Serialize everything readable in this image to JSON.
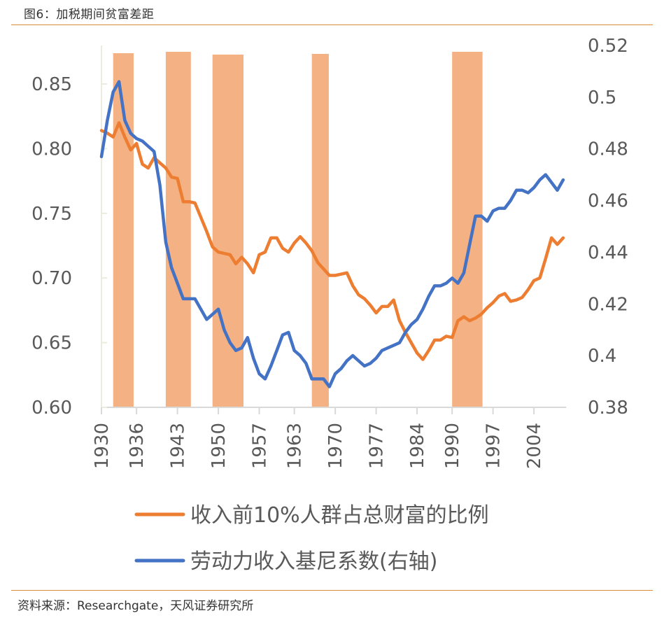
{
  "figure": {
    "title": "图6：加税期间贫富差距",
    "source": "资料来源：Researchgate，天风证券研究所"
  },
  "colors": {
    "orange": "#ed7d31",
    "blue": "#4472c4",
    "band": "#f4b183",
    "overlap": "#9a7a80",
    "axis": "#d9d9d9",
    "rule": "#d88a3c"
  },
  "chart_data": {
    "type": "line",
    "title": "加税期间贫富差距",
    "xlabel": "",
    "ylabel": "",
    "y2label": "",
    "xlim": [
      1930,
      2010
    ],
    "ylim": [
      0.6,
      0.875
    ],
    "y2lim": [
      0.38,
      0.52
    ],
    "grid": false,
    "legend_position": "bottom",
    "x_ticks": [
      "1930",
      "1936",
      "1943",
      "1950",
      "1957",
      "1963",
      "1970",
      "1977",
      "1984",
      "1990",
      "1997",
      "2004"
    ],
    "y_ticks": [
      "0.60",
      "0.65",
      "0.70",
      "0.75",
      "0.80",
      "0.85"
    ],
    "y2_ticks": [
      "0.38",
      "0.4",
      "0.42",
      "0.44",
      "0.46",
      "0.48",
      "0.5",
      "0.52"
    ],
    "shaded_periods": [
      {
        "label": "加税期间",
        "start": 1932,
        "end": 1935.5
      },
      {
        "label": "加税期间",
        "start": 1941,
        "end": 1945.3
      },
      {
        "label": "加税期间",
        "start": 1949,
        "end": 1954.3
      },
      {
        "label": "加税期间",
        "start": 1966,
        "end": 1968.9
      },
      {
        "label": "加税期间",
        "start": 1990,
        "end": 1995.2
      }
    ],
    "series": [
      {
        "name": "收入前10%人群占总财富的比例",
        "axis": "left",
        "color": "#ed7d31",
        "x": [
          1930,
          1931,
          1932,
          1933,
          1934,
          1935,
          1936,
          1937,
          1938,
          1939,
          1940,
          1941,
          1942,
          1943,
          1944,
          1945,
          1946,
          1947,
          1948,
          1949,
          1950,
          1951,
          1952,
          1953,
          1954,
          1955,
          1956,
          1957,
          1958,
          1959,
          1960,
          1961,
          1962,
          1963,
          1964,
          1965,
          1966,
          1967,
          1968,
          1969,
          1970,
          1971,
          1972,
          1973,
          1974,
          1975,
          1976,
          1977,
          1978,
          1979,
          1980,
          1981,
          1982,
          1983,
          1984,
          1985,
          1986,
          1987,
          1988,
          1989,
          1990,
          1991,
          1992,
          1993,
          1994,
          1995,
          1996,
          1997,
          1998,
          1999,
          2000,
          2001,
          2002,
          2003,
          2004,
          2005,
          2006,
          2007,
          2008,
          2009
        ],
        "values": [
          0.814,
          0.812,
          0.809,
          0.82,
          0.809,
          0.799,
          0.804,
          0.788,
          0.785,
          0.793,
          0.789,
          0.785,
          0.778,
          0.777,
          0.759,
          0.759,
          0.758,
          0.747,
          0.736,
          0.724,
          0.72,
          0.719,
          0.718,
          0.711,
          0.716,
          0.711,
          0.704,
          0.718,
          0.72,
          0.731,
          0.731,
          0.723,
          0.72,
          0.727,
          0.732,
          0.727,
          0.721,
          0.712,
          0.707,
          0.702,
          0.702,
          0.703,
          0.704,
          0.694,
          0.687,
          0.684,
          0.679,
          0.673,
          0.678,
          0.678,
          0.683,
          0.667,
          0.658,
          0.65,
          0.642,
          0.637,
          0.644,
          0.652,
          0.652,
          0.655,
          0.654,
          0.667,
          0.67,
          0.667,
          0.669,
          0.672,
          0.677,
          0.681,
          0.686,
          0.688,
          0.682,
          0.683,
          0.685,
          0.691,
          0.698,
          0.7,
          0.715,
          0.731,
          0.726,
          0.731
        ]
      },
      {
        "name": "劳动力收入基尼系数(右轴)",
        "axis": "right",
        "color": "#4472c4",
        "x": [
          1930,
          1931,
          1932,
          1933,
          1934,
          1935,
          1936,
          1937,
          1938,
          1939,
          1940,
          1941,
          1942,
          1943,
          1944,
          1945,
          1946,
          1947,
          1948,
          1949,
          1950,
          1951,
          1952,
          1953,
          1954,
          1955,
          1956,
          1957,
          1958,
          1959,
          1960,
          1961,
          1962,
          1963,
          1964,
          1965,
          1966,
          1967,
          1968,
          1969,
          1970,
          1971,
          1972,
          1973,
          1974,
          1975,
          1976,
          1977,
          1978,
          1979,
          1980,
          1981,
          1982,
          1983,
          1984,
          1985,
          1986,
          1987,
          1988,
          1989,
          1990,
          1991,
          1992,
          1993,
          1994,
          1995,
          1996,
          1997,
          1998,
          1999,
          2000,
          2001,
          2002,
          2003,
          2004,
          2005,
          2006,
          2007,
          2008,
          2009
        ],
        "values": [
          0.477,
          0.491,
          0.502,
          0.506,
          0.491,
          0.486,
          0.484,
          0.483,
          0.481,
          0.479,
          0.466,
          0.444,
          0.434,
          0.428,
          0.422,
          0.422,
          0.422,
          0.418,
          0.414,
          0.416,
          0.418,
          0.41,
          0.405,
          0.402,
          0.403,
          0.407,
          0.399,
          0.393,
          0.391,
          0.396,
          0.402,
          0.408,
          0.409,
          0.402,
          0.4,
          0.397,
          0.391,
          0.391,
          0.391,
          0.388,
          0.393,
          0.395,
          0.398,
          0.4,
          0.398,
          0.396,
          0.397,
          0.399,
          0.402,
          0.403,
          0.404,
          0.405,
          0.409,
          0.412,
          0.414,
          0.418,
          0.423,
          0.427,
          0.427,
          0.428,
          0.43,
          0.428,
          0.432,
          0.443,
          0.454,
          0.454,
          0.452,
          0.456,
          0.457,
          0.457,
          0.46,
          0.464,
          0.464,
          0.463,
          0.465,
          0.468,
          0.47,
          0.467,
          0.464,
          0.468
        ]
      }
    ]
  }
}
